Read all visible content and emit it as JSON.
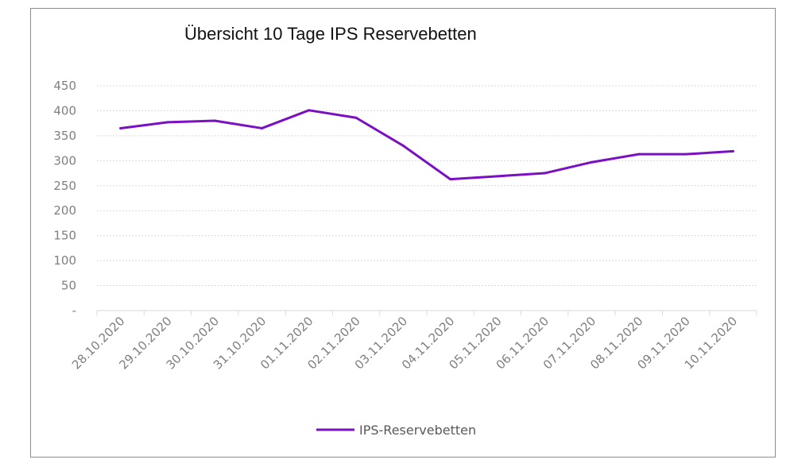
{
  "chart_data": {
    "type": "line",
    "title": "Übersicht 10 Tage IPS Reservebetten",
    "categories": [
      "28.10.2020",
      "29.10.2020",
      "30.10.2020",
      "31.10.2020",
      "01.11.2020",
      "02.11.2020",
      "03.11.2020",
      "04.11.2020",
      "05.11.2020",
      "06.11.2020",
      "07.11.2020",
      "08.11.2020",
      "09.11.2020",
      "10.11.2020"
    ],
    "series": [
      {
        "name": "IPS-Reservebetten",
        "values": [
          365,
          377,
          380,
          365,
          401,
          386,
          330,
          263,
          269,
          275,
          297,
          313,
          313,
          319
        ],
        "color": "#7a10c2"
      }
    ],
    "yticks": [
      "-",
      "50",
      "100",
      "150",
      "200",
      "250",
      "300",
      "350",
      "400",
      "450"
    ],
    "ylim": [
      0,
      450
    ],
    "grid": true,
    "legend_position": "bottom"
  }
}
